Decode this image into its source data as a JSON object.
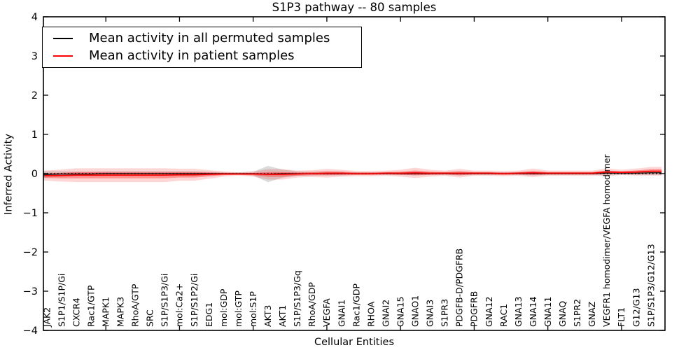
{
  "figure": {
    "title": "S1P3 pathway -- 80 samples",
    "xlabel": "Cellular Entities",
    "ylabel": "Inferred Activity"
  },
  "legend": {
    "entries": [
      {
        "label": "Mean activity in all permuted samples",
        "color": "#000000"
      },
      {
        "label": "Mean activity in patient samples",
        "color": "#ff0000"
      }
    ]
  },
  "chart_data": {
    "type": "line",
    "title": "S1P3 pathway -- 80 samples",
    "xlabel": "Cellular Entities",
    "ylabel": "Inferred Activity",
    "ylim": [
      -4,
      4
    ],
    "yticks": [
      -4,
      -3,
      -2,
      -1,
      0,
      1,
      2,
      3,
      4
    ],
    "unlabeled_x_ticks": [
      5,
      10,
      15,
      20,
      25,
      30,
      35,
      40
    ],
    "grid": false,
    "legend_position": "upper left",
    "zero_line": {
      "y": 0,
      "style": "dotted",
      "color": "#000000"
    },
    "categories": [
      "JAK2",
      "S1P1/S1P/Gi",
      "CXCR4",
      "Rac1/GTP",
      "MAPK1",
      "MAPK3",
      "RhoA/GTP",
      "SRC",
      "S1P/S1P3/Gi",
      "mol:Ca2+",
      "S1P/S1P2/Gi",
      "EDG1",
      "mol:GDP",
      "mol:GTP",
      "mol:S1P",
      "AKT3",
      "AKT1",
      "S1P/S1P3/Gq",
      "RhoA/GDP",
      "VEGFA",
      "GNAI1",
      "Rac1/GDP",
      "RHOA",
      "GNAI2",
      "GNA15",
      "GNAO1",
      "GNAI3",
      "S1PR3",
      "PDGFB-D/PDGFRB",
      "PDGFRB",
      "GNA12",
      "RAC1",
      "GNA13",
      "GNA14",
      "GNA11",
      "GNAQ",
      "S1PR2",
      "GNAZ",
      "VEGFR1 homodimer/VEGFA homodimer",
      "FLT1",
      "G12/G13",
      "S1P/S1P3/G12/G13"
    ],
    "series": [
      {
        "name": "Mean activity in all permuted samples",
        "color": "#000000",
        "band_color": "#999999",
        "values": [
          -0.02,
          -0.01,
          -0.01,
          -0.01,
          0,
          0,
          0,
          0,
          0,
          0,
          0,
          0,
          0,
          0,
          0,
          -0.01,
          0,
          0,
          0,
          0,
          0,
          0,
          0,
          0,
          0,
          0,
          0,
          0,
          0,
          0,
          0,
          0,
          0,
          0,
          0,
          0,
          0,
          0,
          0.01,
          0.01,
          0.01,
          0.02
        ],
        "band": [
          0.07,
          0.06,
          0.05,
          0.05,
          0.05,
          0.05,
          0.05,
          0.05,
          0.05,
          0.05,
          0.05,
          0.04,
          0.03,
          0.03,
          0.04,
          0.18,
          0.09,
          0.05,
          0.04,
          0.04,
          0.04,
          0.03,
          0.03,
          0.03,
          0.03,
          0.04,
          0.03,
          0.03,
          0.04,
          0.03,
          0.03,
          0.03,
          0.03,
          0.04,
          0.03,
          0.03,
          0.03,
          0.03,
          0.05,
          0.04,
          0.04,
          0.05
        ]
      },
      {
        "name": "Mean activity in patient samples",
        "color": "#ff0000",
        "band_color": "#ff0000",
        "values": [
          -0.05,
          -0.05,
          -0.04,
          -0.04,
          -0.04,
          -0.04,
          -0.04,
          -0.04,
          -0.04,
          -0.03,
          -0.03,
          -0.02,
          -0.01,
          -0.01,
          -0.01,
          -0.02,
          -0.02,
          -0.01,
          0,
          0.01,
          0.01,
          0,
          0,
          0.01,
          0.01,
          0.02,
          0.01,
          0.01,
          0.01,
          0.01,
          0.01,
          0,
          0.01,
          0.02,
          0.01,
          0.01,
          0.01,
          0.01,
          0.04,
          0.03,
          0.04,
          0.06
        ],
        "band": [
          0.06,
          0.07,
          0.08,
          0.08,
          0.08,
          0.08,
          0.08,
          0.08,
          0.08,
          0.07,
          0.07,
          0.05,
          0.03,
          0.02,
          0.03,
          0.06,
          0.06,
          0.04,
          0.04,
          0.05,
          0.04,
          0.03,
          0.03,
          0.03,
          0.04,
          0.06,
          0.04,
          0.03,
          0.05,
          0.03,
          0.03,
          0.03,
          0.03,
          0.05,
          0.03,
          0.03,
          0.03,
          0.03,
          0.04,
          0.03,
          0.04,
          0.05
        ]
      }
    ]
  }
}
